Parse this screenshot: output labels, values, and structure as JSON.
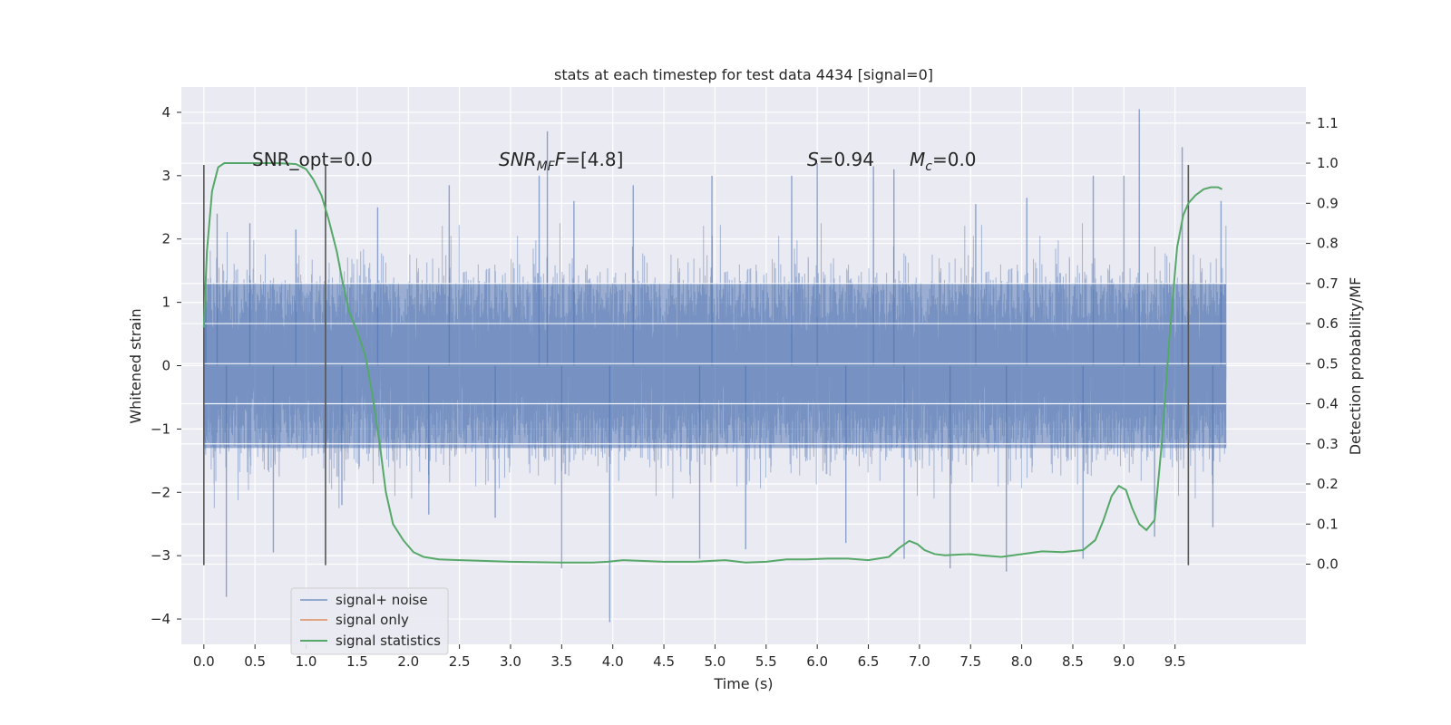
{
  "chart_data": {
    "type": "line",
    "title": "stats at each timestep for test data 4434 [signal=0]",
    "xlabel": "Time (s)",
    "ylabel": "Whitened strain",
    "y2label": "Detection probability/MF",
    "xlim": [
      -0.22,
      10.78
    ],
    "ylim": [
      -4.4,
      4.4
    ],
    "y2lim": [
      -0.2,
      1.19
    ],
    "x_ticks": [
      0.0,
      0.5,
      1.0,
      1.5,
      2.0,
      2.5,
      3.0,
      3.5,
      4.0,
      4.5,
      5.0,
      5.5,
      6.0,
      6.5,
      7.0,
      7.5,
      8.0,
      8.5,
      9.0,
      9.5
    ],
    "x_tick_labels": [
      "0.0",
      "0.5",
      "1.0",
      "1.5",
      "2.0",
      "2.5",
      "3.0",
      "3.5",
      "4.0",
      "4.5",
      "5.0",
      "5.5",
      "6.0",
      "6.5",
      "7.0",
      "7.5",
      "8.0",
      "8.5",
      "9.0",
      "9.5"
    ],
    "y_ticks": [
      -4,
      -3,
      -2,
      -1,
      0,
      1,
      2,
      3,
      4
    ],
    "y_tick_labels": [
      "−4",
      "−3",
      "−2",
      "−1",
      "0",
      "1",
      "2",
      "3",
      "4"
    ],
    "y2_ticks": [
      0.0,
      0.1,
      0.2,
      0.3,
      0.4,
      0.5,
      0.6,
      0.7,
      0.8,
      0.9,
      1.0,
      1.1
    ],
    "y2_tick_labels": [
      "0.0",
      "0.1",
      "0.2",
      "0.3",
      "0.4",
      "0.5",
      "0.6",
      "0.7",
      "0.8",
      "0.9",
      "1.0",
      "1.1"
    ],
    "grid": true,
    "legend_position": "lower-left",
    "annotations": {
      "snr_opt": "SNR_opt=0.0",
      "snr_mf": "SNR",
      "snr_mf_sub": "MF",
      "snr_mf_value": "=[4.8]",
      "s_label": "S",
      "s_value": "=0.94",
      "mc_label": "M",
      "mc_sub": "c",
      "mc_value": "=0.0"
    },
    "vertical_lines": [
      {
        "x": 0.0,
        "ymin": -3.15,
        "ymax": 3.17
      },
      {
        "x": 1.19,
        "ymin": -3.15,
        "ymax": 3.17
      },
      {
        "x": 9.63,
        "ymin": -3.15,
        "ymax": 3.17
      }
    ],
    "series": [
      {
        "name": "signal+ noise",
        "color": "#4c72b0",
        "axis": "left",
        "duration": 10.0,
        "sample_rate": 2048,
        "core_std": 0.62,
        "envelope_range": [
          -1.3,
          1.3
        ],
        "peaks": [
          {
            "x": 0.02,
            "y": 1.3
          },
          {
            "x": 0.13,
            "y": 2.4
          },
          {
            "x": 0.22,
            "y": -3.65
          },
          {
            "x": 0.45,
            "y": 2.25
          },
          {
            "x": 0.68,
            "y": -2.95
          },
          {
            "x": 0.9,
            "y": 2.15
          },
          {
            "x": 1.35,
            "y": -2.2
          },
          {
            "x": 1.7,
            "y": 2.5
          },
          {
            "x": 2.2,
            "y": -2.35
          },
          {
            "x": 2.4,
            "y": 2.85
          },
          {
            "x": 2.85,
            "y": -2.4
          },
          {
            "x": 3.28,
            "y": 3.0
          },
          {
            "x": 3.36,
            "y": 3.7
          },
          {
            "x": 3.5,
            "y": -3.2
          },
          {
            "x": 3.62,
            "y": 2.6
          },
          {
            "x": 3.97,
            "y": -4.05
          },
          {
            "x": 4.2,
            "y": 2.85
          },
          {
            "x": 4.85,
            "y": -3.05
          },
          {
            "x": 4.97,
            "y": 3.0
          },
          {
            "x": 5.3,
            "y": -2.9
          },
          {
            "x": 5.75,
            "y": 3.0
          },
          {
            "x": 6.0,
            "y": 3.2
          },
          {
            "x": 6.28,
            "y": -2.8
          },
          {
            "x": 6.55,
            "y": 3.15
          },
          {
            "x": 6.75,
            "y": 3.1
          },
          {
            "x": 6.85,
            "y": -3.05
          },
          {
            "x": 7.3,
            "y": -3.2
          },
          {
            "x": 7.55,
            "y": 2.55
          },
          {
            "x": 7.85,
            "y": -3.25
          },
          {
            "x": 8.05,
            "y": 2.65
          },
          {
            "x": 8.6,
            "y": -3.05
          },
          {
            "x": 8.7,
            "y": 3.0
          },
          {
            "x": 9.0,
            "y": 3.0
          },
          {
            "x": 9.15,
            "y": 4.05
          },
          {
            "x": 9.3,
            "y": -2.7
          },
          {
            "x": 9.57,
            "y": 3.45
          },
          {
            "x": 9.87,
            "y": -2.55
          },
          {
            "x": 9.95,
            "y": 2.6
          }
        ]
      },
      {
        "name": "signal only",
        "color": "#dd8452",
        "axis": "left",
        "x": [],
        "y": []
      },
      {
        "name": "signal statistics",
        "color": "#55a868",
        "axis": "right",
        "x": [
          0.0,
          0.03,
          0.08,
          0.14,
          0.2,
          0.3,
          0.5,
          0.7,
          0.9,
          1.0,
          1.07,
          1.15,
          1.22,
          1.3,
          1.36,
          1.42,
          1.5,
          1.58,
          1.65,
          1.72,
          1.78,
          1.85,
          1.95,
          2.05,
          2.15,
          2.3,
          2.5,
          3.0,
          3.5,
          3.8,
          3.95,
          4.1,
          4.3,
          4.5,
          4.8,
          5.1,
          5.3,
          5.5,
          5.7,
          5.9,
          6.1,
          6.3,
          6.5,
          6.7,
          6.8,
          6.9,
          6.98,
          7.05,
          7.15,
          7.25,
          7.4,
          7.5,
          7.6,
          7.8,
          8.0,
          8.2,
          8.4,
          8.6,
          8.72,
          8.8,
          8.88,
          8.95,
          9.02,
          9.08,
          9.15,
          9.22,
          9.3,
          9.37,
          9.45,
          9.52,
          9.58,
          9.63,
          9.7,
          9.78,
          9.85,
          9.92,
          9.96
        ],
        "y": [
          0.59,
          0.78,
          0.93,
          0.99,
          1.0,
          1.0,
          1.0,
          1.0,
          0.998,
          0.985,
          0.96,
          0.92,
          0.86,
          0.78,
          0.7,
          0.63,
          0.58,
          0.52,
          0.42,
          0.3,
          0.18,
          0.1,
          0.06,
          0.03,
          0.018,
          0.012,
          0.01,
          0.006,
          0.004,
          0.004,
          0.006,
          0.01,
          0.008,
          0.006,
          0.006,
          0.01,
          0.004,
          0.006,
          0.012,
          0.012,
          0.014,
          0.014,
          0.01,
          0.018,
          0.04,
          0.058,
          0.05,
          0.035,
          0.025,
          0.022,
          0.024,
          0.025,
          0.022,
          0.018,
          0.025,
          0.032,
          0.03,
          0.035,
          0.06,
          0.11,
          0.17,
          0.195,
          0.185,
          0.14,
          0.1,
          0.085,
          0.11,
          0.3,
          0.58,
          0.79,
          0.87,
          0.9,
          0.92,
          0.935,
          0.94,
          0.94,
          0.935
        ]
      }
    ]
  }
}
